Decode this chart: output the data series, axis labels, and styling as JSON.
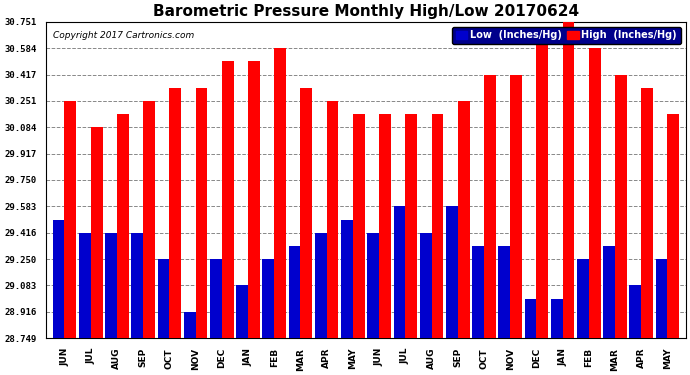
{
  "title": "Barometric Pressure Monthly High/Low 20170624",
  "copyright": "Copyright 2017 Cartronics.com",
  "categories": [
    "JUN",
    "JUL",
    "AUG",
    "SEP",
    "OCT",
    "NOV",
    "DEC",
    "JAN",
    "FEB",
    "MAR",
    "APR",
    "MAY",
    "JUN",
    "JUL",
    "AUG",
    "SEP",
    "OCT",
    "NOV",
    "DEC",
    "JAN",
    "FEB",
    "MAR",
    "APR",
    "MAY"
  ],
  "high_values": [
    30.251,
    30.084,
    30.168,
    30.251,
    30.334,
    30.334,
    30.501,
    30.501,
    30.584,
    30.334,
    30.251,
    30.168,
    30.168,
    30.168,
    30.168,
    30.251,
    30.417,
    30.417,
    30.668,
    30.751,
    30.584,
    30.417,
    30.334,
    30.168
  ],
  "low_values": [
    29.5,
    29.416,
    29.416,
    29.416,
    29.25,
    28.916,
    29.25,
    29.083,
    29.25,
    29.333,
    29.416,
    29.5,
    29.416,
    29.583,
    29.416,
    29.583,
    29.333,
    29.333,
    29.0,
    29.0,
    29.25,
    29.333,
    29.083,
    29.25
  ],
  "high_color": "#FF0000",
  "low_color": "#0000CD",
  "bg_color": "#FFFFFF",
  "plot_bg_color": "#FFFFFF",
  "grid_color": "#888888",
  "yticks": [
    28.749,
    28.916,
    29.083,
    29.25,
    29.416,
    29.583,
    29.75,
    29.917,
    30.084,
    30.251,
    30.417,
    30.584,
    30.751
  ],
  "ylim_min": 28.749,
  "ylim_max": 30.751,
  "title_fontsize": 11,
  "copyright_fontsize": 6.5,
  "tick_fontsize": 6.5,
  "legend_fontsize": 7
}
